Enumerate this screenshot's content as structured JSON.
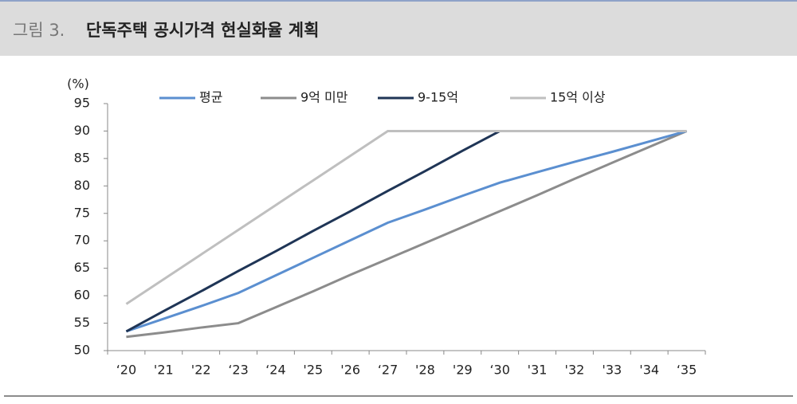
{
  "header": {
    "figure_label": "그림 3.",
    "title": "단독주택 공시가격 현실화율 계획"
  },
  "chart_data": {
    "type": "line",
    "y_unit": "(%)",
    "categories": [
      "‘20",
      "'21",
      "'22",
      "‘23",
      "‘24",
      "'25",
      "'26",
      "‘27",
      "'28",
      "'29",
      "‘30",
      "'31",
      "'32",
      "'33",
      "'34",
      "‘35"
    ],
    "series": [
      {
        "name": "평균",
        "color": "#5b8fd0",
        "values": [
          53.5,
          55.8,
          58.1,
          60.5,
          63.7,
          66.9,
          70.1,
          73.3,
          75.7,
          78.2,
          80.6,
          82.5,
          84.4,
          86.2,
          88.1,
          90
        ]
      },
      {
        "name": "9억 미만",
        "color": "#8c8c8c",
        "values": [
          52.5,
          53.3,
          54.2,
          55,
          57.9,
          60.8,
          63.8,
          66.7,
          69.6,
          72.5,
          75.4,
          78.3,
          81.3,
          84.2,
          87.1,
          90
        ]
      },
      {
        "name": "9-15억",
        "color": "#1f3556",
        "values": [
          53.5,
          57.2,
          60.8,
          64.5,
          68.1,
          71.8,
          75.4,
          79.1,
          82.7,
          86.4,
          90,
          90,
          90,
          90,
          90,
          90
        ]
      },
      {
        "name": "15억 이상",
        "color": "#bfbfbf",
        "values": [
          58.5,
          63,
          67.5,
          72,
          76.5,
          81,
          85.5,
          90,
          90,
          90,
          90,
          90,
          90,
          90,
          90,
          90
        ]
      }
    ],
    "ylim": [
      50,
      95
    ],
    "yticks": [
      50,
      55,
      60,
      65,
      70,
      75,
      80,
      85,
      90,
      95
    ]
  }
}
